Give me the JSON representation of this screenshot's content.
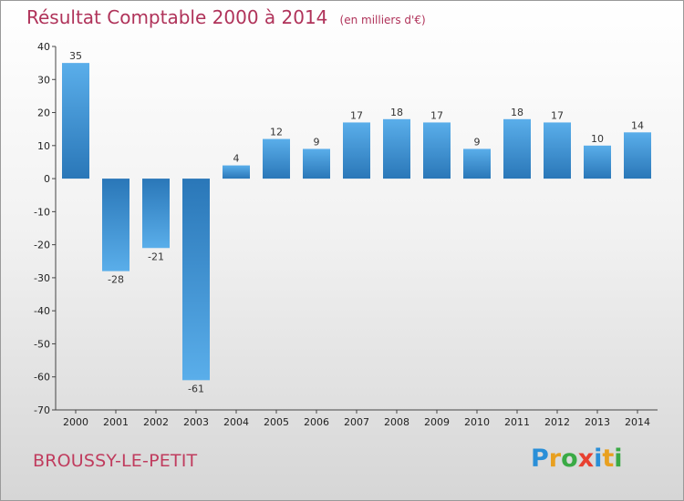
{
  "chart_data": {
    "type": "bar",
    "title": "Résultat Comptable 2000 à 2014",
    "subtitle": "(en milliers d'€)",
    "categories": [
      "2000",
      "2001",
      "2002",
      "2003",
      "2004",
      "2005",
      "2006",
      "2007",
      "2008",
      "2009",
      "2010",
      "2011",
      "2012",
      "2013",
      "2014"
    ],
    "values": [
      35,
      -28,
      -21,
      -61,
      4,
      12,
      9,
      17,
      18,
      17,
      9,
      18,
      17,
      10,
      14
    ],
    "data_labels": [
      "35",
      "-28",
      "-21",
      "-61",
      "4",
      "12",
      "9",
      "17",
      "18",
      "17",
      "9",
      "18",
      "17",
      "10",
      "14"
    ],
    "ylim": [
      -70,
      40
    ],
    "yticks": [
      40,
      30,
      20,
      10,
      0,
      -10,
      -20,
      -30,
      -40,
      -50,
      -60,
      -70
    ],
    "grid": false,
    "bar_color_light": "#5aaeea",
    "bar_color_dark": "#2a77b8"
  },
  "location": "BROUSSY-LE-PETIT",
  "logo": {
    "letters": [
      "P",
      "r",
      "o",
      "x",
      "i",
      "t",
      "i"
    ],
    "colors": [
      "#2a8fd8",
      "#e8a020",
      "#3aaa45",
      "#e84030",
      "#2a8fd8",
      "#e8a020",
      "#3aaa45"
    ]
  }
}
